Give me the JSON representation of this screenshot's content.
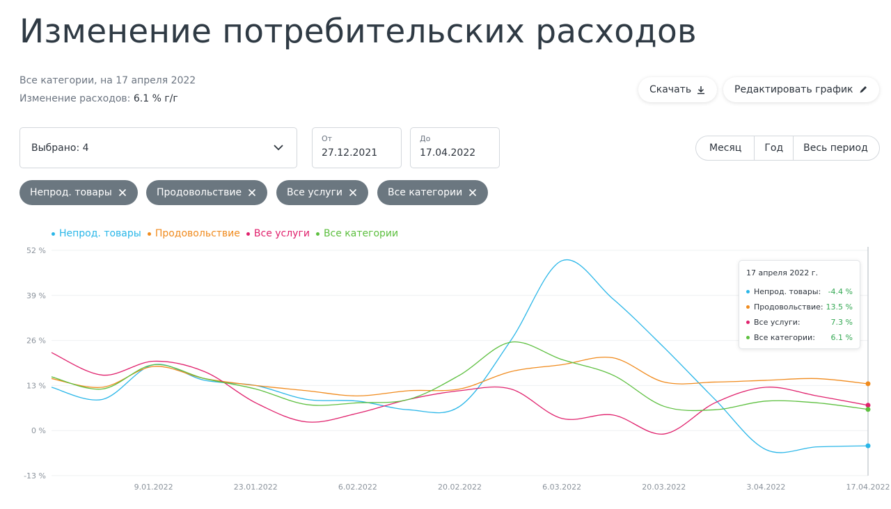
{
  "page": {
    "title": "Изменение потребительских расходов",
    "subtitle": "Все категории, на 17 апреля 2022",
    "change_label": "Изменение расходов:",
    "change_value": "6.1 % г/г"
  },
  "actions": {
    "download_label": "Скачать",
    "edit_label": "Редактировать график"
  },
  "filters": {
    "selected_label": "Выбрано: 4",
    "from_label": "От",
    "from_value": "27.12.2021",
    "to_label": "До",
    "to_value": "17.04.2022",
    "periods": [
      "Месяц",
      "Год",
      "Весь период"
    ],
    "chips": [
      "Непрод. товары",
      "Продовольствие",
      "Все услуги",
      "Все категории"
    ]
  },
  "colors": {
    "nonfood": "#29b6e8",
    "food": "#f08a1c",
    "services": "#e0206c",
    "all": "#5cbf3e"
  },
  "tooltip": {
    "date": "17 апреля 2022 г.",
    "rows": [
      {
        "name": "Непрод. товары:",
        "value": "-4.4 %"
      },
      {
        "name": "Продовольствие:",
        "value": "13.5 %"
      },
      {
        "name": "Все услуги:",
        "value": "7.3 %"
      },
      {
        "name": "Все категории:",
        "value": "6.1 %"
      }
    ]
  },
  "chart_data": {
    "type": "line",
    "y_ticks": [
      "52 %",
      "39 %",
      "26 %",
      "13 %",
      "0 %",
      "-13 %"
    ],
    "ylim": [
      -13,
      52
    ],
    "x_ticks": [
      "9.01.2022",
      "23.01.2022",
      "6.02.2022",
      "20.02.2022",
      "6.03.2022",
      "20.03.2022",
      "3.04.2022",
      "17.04.2022"
    ],
    "x": [
      "27.12.2021",
      "2.01.2022",
      "9.01.2022",
      "16.01.2022",
      "23.01.2022",
      "30.01.2022",
      "6.02.2022",
      "13.02.2022",
      "20.02.2022",
      "27.02.2022",
      "6.03.2022",
      "13.03.2022",
      "20.03.2022",
      "27.03.2022",
      "3.04.2022",
      "10.04.2022",
      "17.04.2022"
    ],
    "series": [
      {
        "name": "Непрод. товары",
        "color": "nonfood",
        "values": [
          12.5,
          9,
          19,
          14.5,
          13,
          9,
          8.5,
          6,
          7,
          26,
          49,
          38,
          24,
          9,
          -5.5,
          -4.7,
          -4.4
        ]
      },
      {
        "name": "Продовольствие",
        "color": "food",
        "values": [
          15,
          12.5,
          18.5,
          15,
          13,
          11.5,
          10,
          11.5,
          12,
          17,
          19,
          21,
          14,
          14,
          14.5,
          15,
          13.5
        ]
      },
      {
        "name": "Все услуги",
        "color": "services",
        "values": [
          22.5,
          16,
          20,
          17,
          8,
          2.5,
          5,
          9,
          11.5,
          12,
          3.5,
          4.5,
          -1,
          8,
          12.5,
          10,
          7.3
        ]
      },
      {
        "name": "Все категории",
        "color": "all",
        "values": [
          15.5,
          12,
          19,
          15,
          12,
          7.5,
          8,
          9,
          16,
          25.5,
          20.5,
          16,
          7,
          6,
          8.5,
          8,
          6.1
        ]
      }
    ],
    "legend_position": "top-left",
    "grid": true
  }
}
